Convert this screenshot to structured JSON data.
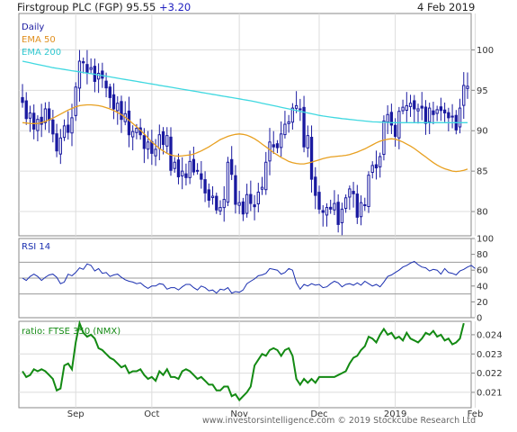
{
  "header": {
    "title": "Firstgroup PLC (FGP)",
    "price": "95.55",
    "change": "+3.20",
    "date": "4 Feb 2019"
  },
  "footer": "www.investorsintelligence.com   © 2019 Stockcube Research Ltd",
  "colors": {
    "candle": "#1a1aa0",
    "ema50": "#e8a020",
    "ema200": "#40d8e0",
    "rsi": "#1a2fb0",
    "ratio": "#138a13",
    "ema50_label": "#e09020",
    "ema200_label": "#30c8d0",
    "change": "#2020c0"
  },
  "chart_data": [
    {
      "type": "candlestick",
      "panel": "price",
      "legend": [
        {
          "name": "Daily"
        },
        {
          "name": "EMA 50"
        },
        {
          "name": "EMA 200"
        }
      ],
      "ylim": [
        77,
        104.5
      ],
      "yticks": [
        80,
        85,
        90,
        95,
        100
      ],
      "x_month_labels": [
        {
          "label": "Sep",
          "index": 14
        },
        {
          "label": "Oct",
          "index": 34
        },
        {
          "label": "Nov",
          "index": 57
        },
        {
          "label": "Dec",
          "index": 78
        },
        {
          "label": "2019",
          "index": 98
        },
        {
          "label": "Feb",
          "index": 119
        }
      ],
      "closes": [
        93.5,
        91.5,
        92.2,
        90.2,
        91.4,
        90.8,
        92.7,
        91.3,
        89.6,
        87.5,
        89.1,
        90.6,
        89.8,
        91.6,
        95.4,
        98.6,
        98.4,
        97.2,
        97.8,
        96.1,
        97.1,
        96.5,
        95.3,
        94.1,
        92.7,
        93.4,
        91.4,
        92.1,
        89.5,
        89.9,
        90.3,
        89.5,
        87.8,
        88.6,
        87.2,
        87.7,
        89.5,
        88.3,
        89.4,
        85.1,
        86.1,
        84.3,
        85.0,
        84.2,
        86.2,
        84.9,
        85.0,
        84.0,
        82.3,
        81.4,
        81.9,
        80.2,
        80.5,
        81.5,
        86.1,
        84.6,
        80.9,
        81.1,
        79.7,
        82.1,
        81.0,
        80.6,
        82.4,
        83.0,
        86.1,
        88.6,
        88.0,
        87.9,
        89.6,
        90.8,
        91.1,
        92.8,
        93.1,
        92.7,
        88.0,
        89.4,
        84.0,
        82.0,
        80.3,
        79.9,
        80.5,
        80.3,
        81.0,
        78.4,
        80.3,
        81.7,
        82.8,
        82.2,
        79.3,
        81.1,
        80.8,
        84.5,
        85.7,
        85.4,
        86.8,
        91.2,
        92.0,
        90.7,
        89.3,
        92.4,
        92.9,
        93.1,
        93.4,
        92.7,
        92.7,
        92.8,
        90.9,
        92.8,
        92.0,
        92.6,
        92.5,
        92.2,
        91.6,
        91.8,
        90.1,
        92.8,
        95.6,
        95.5
      ],
      "ema50": [
        91.0,
        90.95,
        90.9,
        90.88,
        90.9,
        91.0,
        91.15,
        91.35,
        91.55,
        91.8,
        92.05,
        92.3,
        92.55,
        92.75,
        92.95,
        93.1,
        93.15,
        93.2,
        93.2,
        93.15,
        93.1,
        93.0,
        92.85,
        92.7,
        92.5,
        92.25,
        92.0,
        91.65,
        91.3,
        90.9,
        90.5,
        90.05,
        89.6,
        89.1,
        88.6,
        88.2,
        87.8,
        87.5,
        87.2,
        87.0,
        86.9,
        86.85,
        86.9,
        86.95,
        87.0,
        87.1,
        87.3,
        87.5,
        87.75,
        88.0,
        88.3,
        88.6,
        88.9,
        89.1,
        89.3,
        89.45,
        89.55,
        89.6,
        89.55,
        89.45,
        89.25,
        89.0,
        88.7,
        88.35,
        88.0,
        87.65,
        87.3,
        87.0,
        86.7,
        86.45,
        86.2,
        86.05,
        85.95,
        85.9,
        85.9,
        86.0,
        86.1,
        86.25,
        86.4,
        86.55,
        86.65,
        86.75,
        86.8,
        86.85,
        86.9,
        86.95,
        87.05,
        87.2,
        87.35,
        87.55,
        87.75,
        88.0,
        88.25,
        88.5,
        88.7,
        88.85,
        88.95,
        89.0,
        88.95,
        88.8,
        88.6,
        88.35,
        88.1,
        87.8,
        87.45,
        87.1,
        86.75,
        86.4,
        86.05,
        85.75,
        85.5,
        85.3,
        85.15,
        85.0,
        84.95,
        85.0,
        85.1,
        85.25
      ],
      "ema200": [
        98.6,
        98.5,
        98.4,
        98.3,
        98.2,
        98.1,
        98.0,
        97.9,
        97.8,
        97.72,
        97.65,
        97.58,
        97.5,
        97.42,
        97.35,
        97.28,
        97.2,
        97.12,
        97.05,
        96.98,
        96.9,
        96.82,
        96.74,
        96.66,
        96.58,
        96.5,
        96.42,
        96.34,
        96.26,
        96.18,
        96.1,
        96.02,
        95.94,
        95.86,
        95.78,
        95.7,
        95.62,
        95.54,
        95.46,
        95.38,
        95.3,
        95.22,
        95.14,
        95.06,
        94.98,
        94.9,
        94.82,
        94.74,
        94.66,
        94.58,
        94.5,
        94.42,
        94.34,
        94.26,
        94.18,
        94.1,
        94.02,
        93.94,
        93.86,
        93.78,
        93.7,
        93.6,
        93.5,
        93.4,
        93.3,
        93.2,
        93.1,
        93.0,
        92.9,
        92.8,
        92.7,
        92.6,
        92.5,
        92.4,
        92.3,
        92.2,
        92.1,
        92.0,
        91.9,
        91.82,
        91.75,
        91.68,
        91.62,
        91.56,
        91.5,
        91.45,
        91.4,
        91.35,
        91.3,
        91.25,
        91.2,
        91.15,
        91.1,
        91.08,
        91.06,
        91.04,
        91.02,
        91.0,
        91.0,
        91.0,
        91.0,
        91.0,
        91.0,
        91.0,
        91.0,
        91.0,
        91.0,
        91.0,
        91.0,
        91.0,
        91.0,
        91.0,
        91.0,
        91.0,
        91.0,
        91.0,
        91.0,
        91.0
      ]
    },
    {
      "type": "line",
      "panel": "rsi",
      "title": "RSI 14",
      "ylim": [
        0,
        100
      ],
      "yticks": [
        0,
        20,
        40,
        60,
        80,
        100
      ],
      "reference_lines": [
        30,
        50,
        70
      ],
      "values": [
        50,
        47,
        52,
        55,
        52,
        47,
        51,
        54,
        55,
        51,
        43,
        45,
        55,
        53,
        57,
        63,
        61,
        68,
        66,
        59,
        62,
        56,
        57,
        52,
        54,
        55,
        51,
        48,
        46,
        45,
        43,
        44,
        40,
        37,
        40,
        40,
        43,
        42,
        36,
        38,
        38,
        35,
        39,
        42,
        42,
        38,
        35,
        40,
        38,
        34,
        35,
        31,
        36,
        35,
        38,
        31,
        33,
        32,
        35,
        43,
        46,
        49,
        53,
        54,
        56,
        62,
        61,
        60,
        55,
        57,
        62,
        60,
        44,
        36,
        42,
        40,
        43,
        41,
        42,
        38,
        39,
        43,
        46,
        44,
        39,
        42,
        43,
        41,
        44,
        41,
        46,
        43,
        40,
        42,
        39,
        45,
        52,
        54,
        57,
        60,
        64,
        66,
        69,
        71,
        67,
        64,
        63,
        59,
        61,
        60,
        55,
        62,
        57,
        56,
        54,
        59,
        61,
        64,
        66,
        62
      ]
    },
    {
      "type": "line",
      "panel": "ratio",
      "title": "ratio: FTSE 350 (NMX)",
      "ylim": [
        0.0202,
        0.0247
      ],
      "yticks": [
        0.021,
        0.022,
        0.023,
        0.024
      ],
      "values": [
        0.0221,
        0.0218,
        0.0219,
        0.0222,
        0.0221,
        0.0222,
        0.0221,
        0.0219,
        0.0217,
        0.0211,
        0.0212,
        0.0224,
        0.0225,
        0.0222,
        0.0236,
        0.0246,
        0.0241,
        0.0239,
        0.024,
        0.0238,
        0.0233,
        0.0232,
        0.023,
        0.0228,
        0.0227,
        0.0225,
        0.0223,
        0.0224,
        0.022,
        0.0221,
        0.0221,
        0.0222,
        0.0219,
        0.0217,
        0.0218,
        0.0216,
        0.0221,
        0.0219,
        0.0222,
        0.0218,
        0.0218,
        0.0217,
        0.0221,
        0.0222,
        0.0221,
        0.0219,
        0.0217,
        0.0218,
        0.0216,
        0.0214,
        0.0214,
        0.0211,
        0.0211,
        0.0213,
        0.0213,
        0.0208,
        0.0209,
        0.0206,
        0.0208,
        0.021,
        0.0213,
        0.0224,
        0.0227,
        0.023,
        0.0229,
        0.0232,
        0.0233,
        0.0232,
        0.0229,
        0.0232,
        0.0233,
        0.0229,
        0.0217,
        0.0214,
        0.0217,
        0.0215,
        0.0217,
        0.0215,
        0.0218,
        0.0218,
        0.0218,
        0.0218,
        0.0218,
        0.0219,
        0.022,
        0.0221,
        0.0225,
        0.0228,
        0.0229,
        0.0232,
        0.0234,
        0.0239,
        0.0238,
        0.0236,
        0.024,
        0.0243,
        0.024,
        0.0241,
        0.0238,
        0.0239,
        0.0237,
        0.0241,
        0.0238,
        0.0237,
        0.0236,
        0.0238,
        0.0241,
        0.024,
        0.0242,
        0.0239,
        0.024,
        0.0237,
        0.0238,
        0.0235,
        0.0236,
        0.0238,
        0.0246
      ]
    }
  ]
}
